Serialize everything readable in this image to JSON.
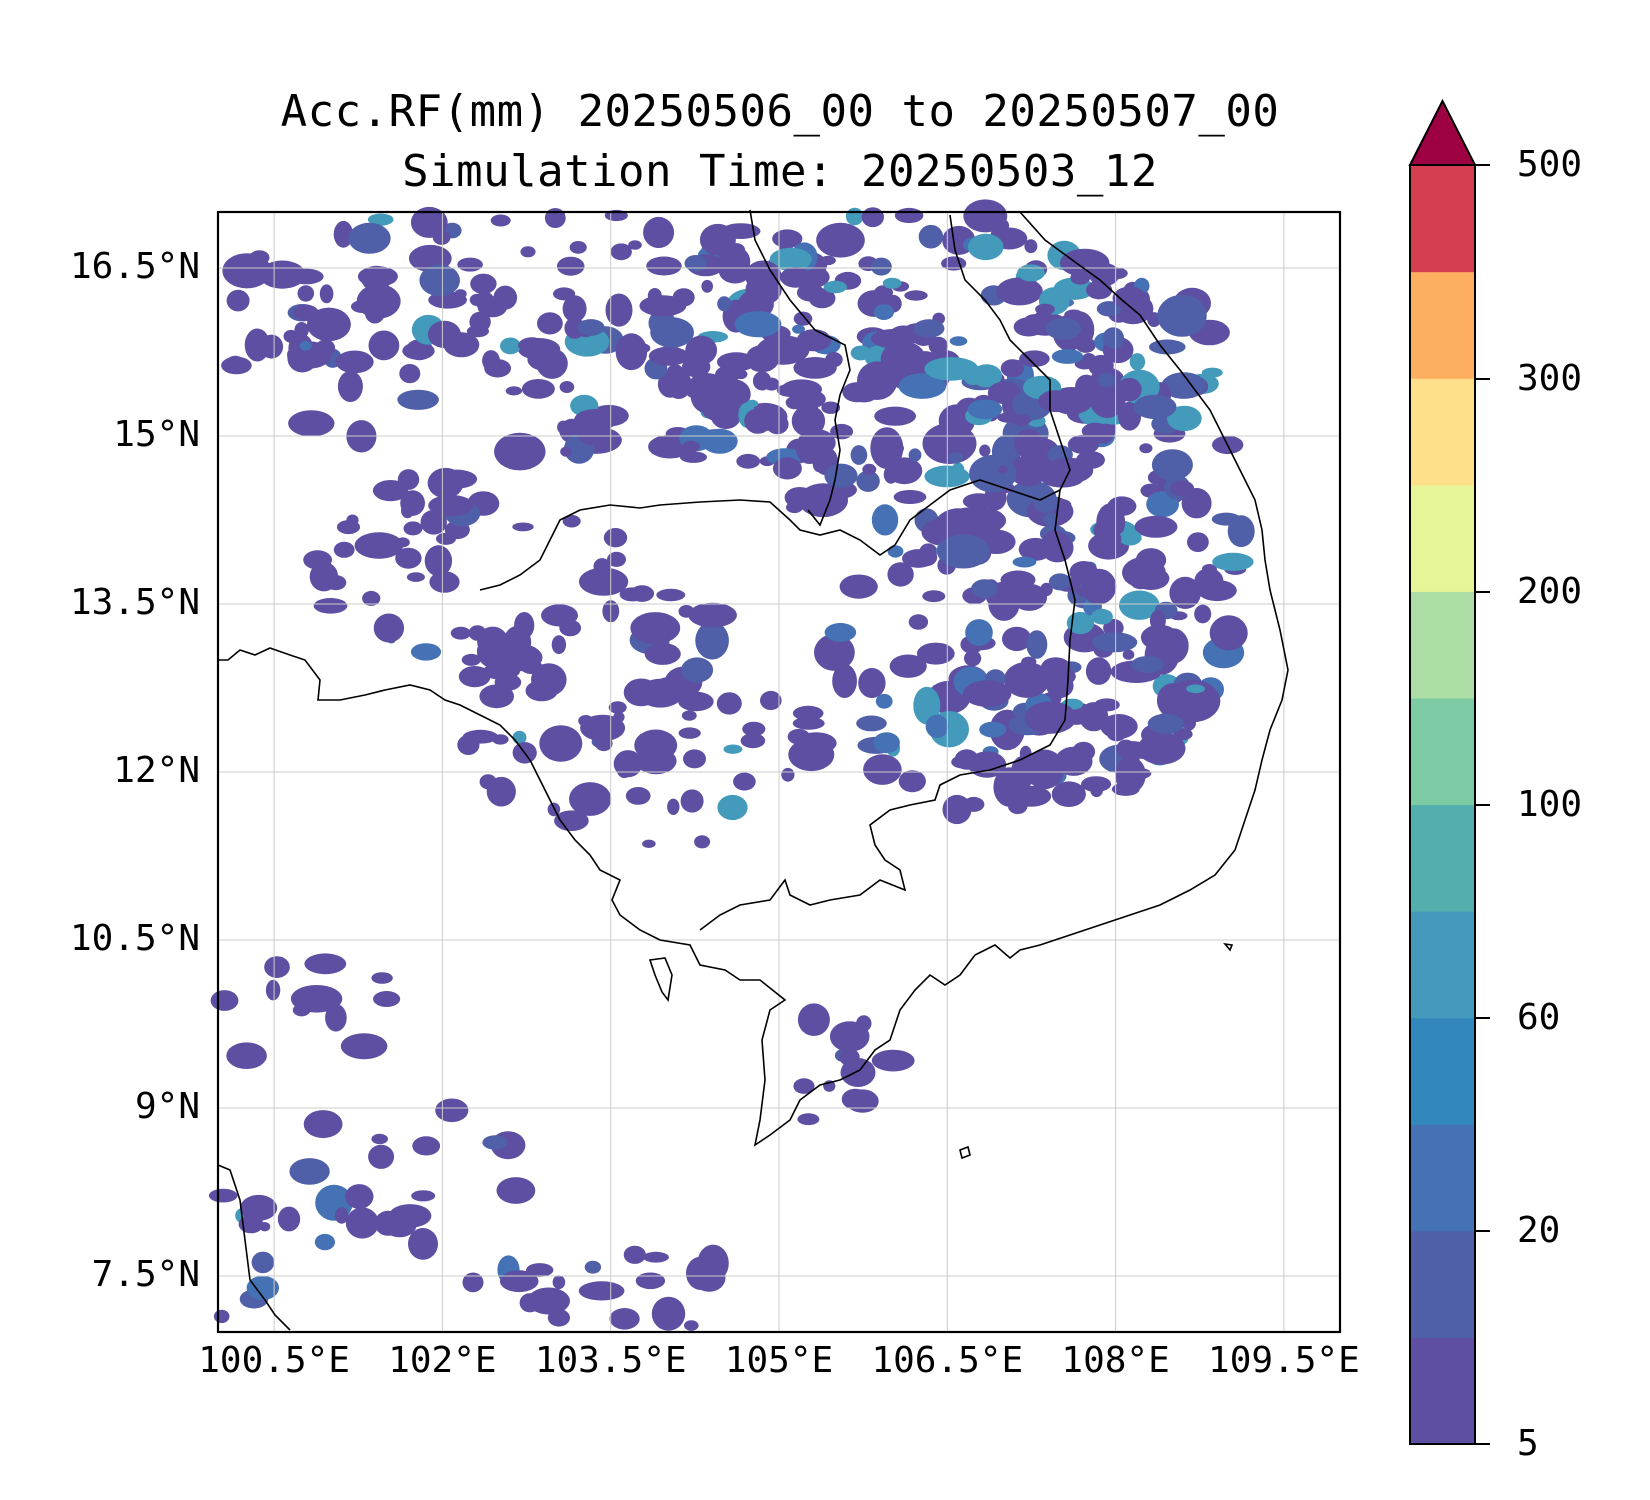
{
  "map": {
    "title_line1": "Acc.RF(mm) 20250506_00 to 20250507_00",
    "title_line2": "Simulation Time: 20250503_12",
    "lat_ticks": [
      "16.5°N",
      "15°N",
      "13.5°N",
      "12°N",
      "10.5°N",
      "9°N",
      "7.5°N"
    ],
    "lon_ticks": [
      "100.5°E",
      "102°E",
      "103.5°E",
      "105°E",
      "106.5°E",
      "108°E",
      "109.5°E"
    ],
    "lat_values": [
      16.5,
      15,
      13.5,
      12,
      10.5,
      9,
      7.5
    ],
    "lon_values": [
      100.5,
      102,
      103.5,
      105,
      106.5,
      108,
      109.5
    ],
    "lat_range": [
      7.0,
      17.0
    ],
    "lon_range": [
      100.0,
      110.0
    ],
    "grid": true
  },
  "colorbar": {
    "labels": [
      "500",
      "300",
      "200",
      "100",
      "60",
      "20",
      "5"
    ],
    "label_values": [
      500,
      300,
      200,
      100,
      60,
      20,
      5
    ],
    "levels": [
      5,
      10,
      20,
      40,
      60,
      80,
      100,
      150,
      200,
      250,
      300,
      400,
      500
    ],
    "colors": [
      "#5e4fa2",
      "#4f5fa8",
      "#4472b4",
      "#3288bd",
      "#439aba",
      "#54aead",
      "#7dcba4",
      "#abdda4",
      "#e6f598",
      "#fee08b",
      "#fdae61",
      "#d53e4f"
    ],
    "extend_color": "#9e0142",
    "extend": "max"
  },
  "colors": {
    "rain_low": "#5e4fa2",
    "rain_mid": "#4472b4",
    "rain_high": "#54aead",
    "coastline": "#000000"
  }
}
